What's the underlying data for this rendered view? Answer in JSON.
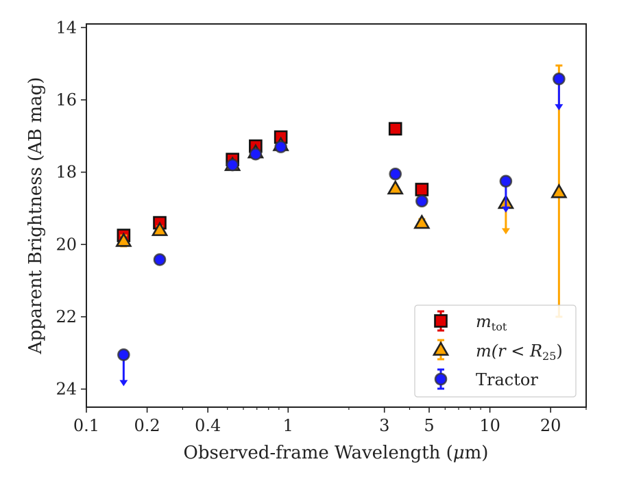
{
  "chart_data": {
    "type": "scatter",
    "xlabel": "Observed-frame Wavelength (μm)",
    "ylabel": "Apparent Brightness (AB mag)",
    "xscale": "log",
    "xlim": [
      0.1,
      30
    ],
    "ylim": [
      24.5,
      13.9
    ],
    "y_inverted": true,
    "xticks": [
      {
        "value": 0.1,
        "label": "0.1"
      },
      {
        "value": 0.2,
        "label": "0.2"
      },
      {
        "value": 0.4,
        "label": "0.4"
      },
      {
        "value": 1,
        "label": "1"
      },
      {
        "value": 3,
        "label": "3"
      },
      {
        "value": 5,
        "label": "5"
      },
      {
        "value": 10,
        "label": "10"
      },
      {
        "value": 20,
        "label": "20"
      }
    ],
    "yticks": [
      {
        "value": 14,
        "label": "14"
      },
      {
        "value": 16,
        "label": "16"
      },
      {
        "value": 18,
        "label": "18"
      },
      {
        "value": 20,
        "label": "20"
      },
      {
        "value": 22,
        "label": "22"
      },
      {
        "value": 24,
        "label": "24"
      }
    ],
    "grid": false,
    "legend_position": "lower-right",
    "series": [
      {
        "name": "m_tot",
        "marker": "square",
        "color": "#e00000",
        "points": [
          {
            "x": 0.153,
            "y": 19.75,
            "err": 0.12
          },
          {
            "x": 0.231,
            "y": 19.4,
            "err": 0.08
          },
          {
            "x": 0.53,
            "y": 17.65,
            "err": 0.05
          },
          {
            "x": 0.69,
            "y": 17.28,
            "err": 0.05
          },
          {
            "x": 0.92,
            "y": 17.03,
            "err": 0.05
          },
          {
            "x": 3.4,
            "y": 16.8,
            "err": 0.05
          },
          {
            "x": 4.6,
            "y": 18.48,
            "err": 0.08
          }
        ]
      },
      {
        "name": "m(r < R25)",
        "marker": "triangle",
        "color": "#ffa500",
        "points": [
          {
            "x": 0.153,
            "y": 19.9,
            "err": 0.15
          },
          {
            "x": 0.231,
            "y": 19.6,
            "err": 0.1
          },
          {
            "x": 0.53,
            "y": 17.8,
            "err": 0.05
          },
          {
            "x": 0.69,
            "y": 17.45,
            "err": 0.05
          },
          {
            "x": 0.92,
            "y": 17.25,
            "err": 0.05
          },
          {
            "x": 3.4,
            "y": 18.45,
            "err": 0.05
          },
          {
            "x": 4.6,
            "y": 19.4,
            "err": 0.1
          },
          {
            "x": 12.0,
            "y": 18.85,
            "upper_limit": true
          },
          {
            "x": 22.0,
            "y": 18.55,
            "err_low": 3.5,
            "err_high": 3.45
          }
        ]
      },
      {
        "name": "Tractor",
        "marker": "circle",
        "color": "#1a1aff",
        "points": [
          {
            "x": 0.153,
            "y": 23.05,
            "upper_limit": true
          },
          {
            "x": 0.231,
            "y": 20.42,
            "err": 0.05
          },
          {
            "x": 0.53,
            "y": 17.8,
            "err": 0.05
          },
          {
            "x": 0.69,
            "y": 17.5,
            "err": 0.05
          },
          {
            "x": 0.92,
            "y": 17.3,
            "err": 0.05
          },
          {
            "x": 3.4,
            "y": 18.05,
            "err": 0.05
          },
          {
            "x": 4.6,
            "y": 18.8,
            "err": 0.08
          },
          {
            "x": 12.0,
            "y": 18.25,
            "upper_limit": true
          },
          {
            "x": 22.0,
            "y": 15.42,
            "upper_limit": true
          }
        ]
      }
    ]
  },
  "legend": {
    "items": [
      {
        "base": "m",
        "sub": "tot",
        "rest": ""
      },
      {
        "base": "m(r < R",
        "sub": "25",
        "rest": ")"
      },
      {
        "base": "Tractor",
        "sub": "",
        "rest": ""
      }
    ]
  },
  "axes": {
    "xlabel_prefix": "Observed-frame Wavelength (",
    "xlabel_mu": "μ",
    "xlabel_suffix": "m)",
    "ylabel": "Apparent Brightness (AB mag)"
  }
}
